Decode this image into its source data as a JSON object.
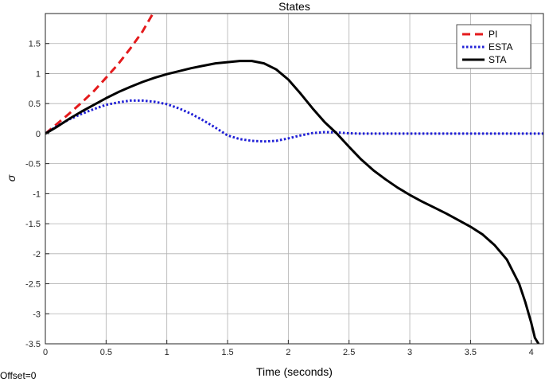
{
  "chart_data": {
    "type": "line",
    "title": "States",
    "xlabel": "Time (seconds)",
    "ylabel": "σ",
    "xlim": [
      0,
      4.1
    ],
    "ylim": [
      -3.5,
      2.0
    ],
    "xticks": [
      0,
      0.5,
      1,
      1.5,
      2,
      2.5,
      3,
      3.5,
      4
    ],
    "xtick_labels": [
      "0",
      "0.5",
      "1",
      "1.5",
      "2",
      "2.5",
      "3",
      "3.5",
      "4"
    ],
    "yticks": [
      1.5,
      1,
      0.5,
      0,
      -0.5,
      -1,
      -1.5,
      -2,
      -2.5,
      -3,
      -3.5
    ],
    "ytick_labels": [
      "1.5",
      "1",
      "0.5",
      "0",
      "-0.5",
      "-1",
      "-1.5",
      "-2",
      "-2.5",
      "-3",
      "-3.5"
    ],
    "grid": true,
    "legend_position": "top-right",
    "footnote": "Offset=0",
    "series": [
      {
        "name": "PI",
        "color": "#e41a1c",
        "dash": "dashed",
        "x": [
          0,
          0.1,
          0.2,
          0.3,
          0.4,
          0.5,
          0.6,
          0.7,
          0.8,
          0.9,
          0.95,
          0.98
        ],
        "y": [
          0,
          0.17,
          0.34,
          0.52,
          0.71,
          0.93,
          1.16,
          1.42,
          1.7,
          2.05,
          2.25,
          2.4
        ]
      },
      {
        "name": "ESTA",
        "color": "#1f1fd6",
        "dash": "dotted",
        "x": [
          0,
          0.1,
          0.2,
          0.3,
          0.4,
          0.5,
          0.6,
          0.7,
          0.8,
          0.9,
          1.0,
          1.1,
          1.2,
          1.3,
          1.4,
          1.5,
          1.6,
          1.7,
          1.8,
          1.9,
          2.0,
          2.1,
          2.2,
          2.3,
          2.4,
          2.5,
          2.6,
          2.8,
          3.0,
          3.5,
          4.0,
          4.1
        ],
        "y": [
          0,
          0.13,
          0.24,
          0.33,
          0.41,
          0.48,
          0.52,
          0.55,
          0.55,
          0.53,
          0.49,
          0.42,
          0.33,
          0.22,
          0.1,
          -0.03,
          -0.09,
          -0.12,
          -0.13,
          -0.12,
          -0.08,
          -0.03,
          0.01,
          0.025,
          0.02,
          0.005,
          0,
          0,
          0,
          0,
          0,
          0
        ]
      },
      {
        "name": "STA",
        "color": "#000000",
        "dash": "solid",
        "x": [
          0,
          0.1,
          0.2,
          0.3,
          0.4,
          0.5,
          0.6,
          0.7,
          0.8,
          0.9,
          1.0,
          1.1,
          1.2,
          1.3,
          1.4,
          1.5,
          1.6,
          1.7,
          1.8,
          1.9,
          2.0,
          2.1,
          2.2,
          2.3,
          2.4,
          2.5,
          2.6,
          2.7,
          2.8,
          2.9,
          3.0,
          3.1,
          3.2,
          3.3,
          3.4,
          3.5,
          3.6,
          3.7,
          3.8,
          3.9,
          3.95,
          4.0,
          4.03,
          4.06
        ],
        "y": [
          0,
          0.12,
          0.25,
          0.37,
          0.48,
          0.59,
          0.69,
          0.78,
          0.86,
          0.93,
          0.99,
          1.04,
          1.09,
          1.13,
          1.17,
          1.19,
          1.21,
          1.21,
          1.17,
          1.07,
          0.9,
          0.67,
          0.42,
          0.19,
          0.0,
          -0.22,
          -0.43,
          -0.61,
          -0.76,
          -0.9,
          -1.02,
          -1.13,
          -1.23,
          -1.33,
          -1.44,
          -1.55,
          -1.68,
          -1.86,
          -2.1,
          -2.5,
          -2.8,
          -3.15,
          -3.4,
          -3.5
        ]
      }
    ]
  }
}
